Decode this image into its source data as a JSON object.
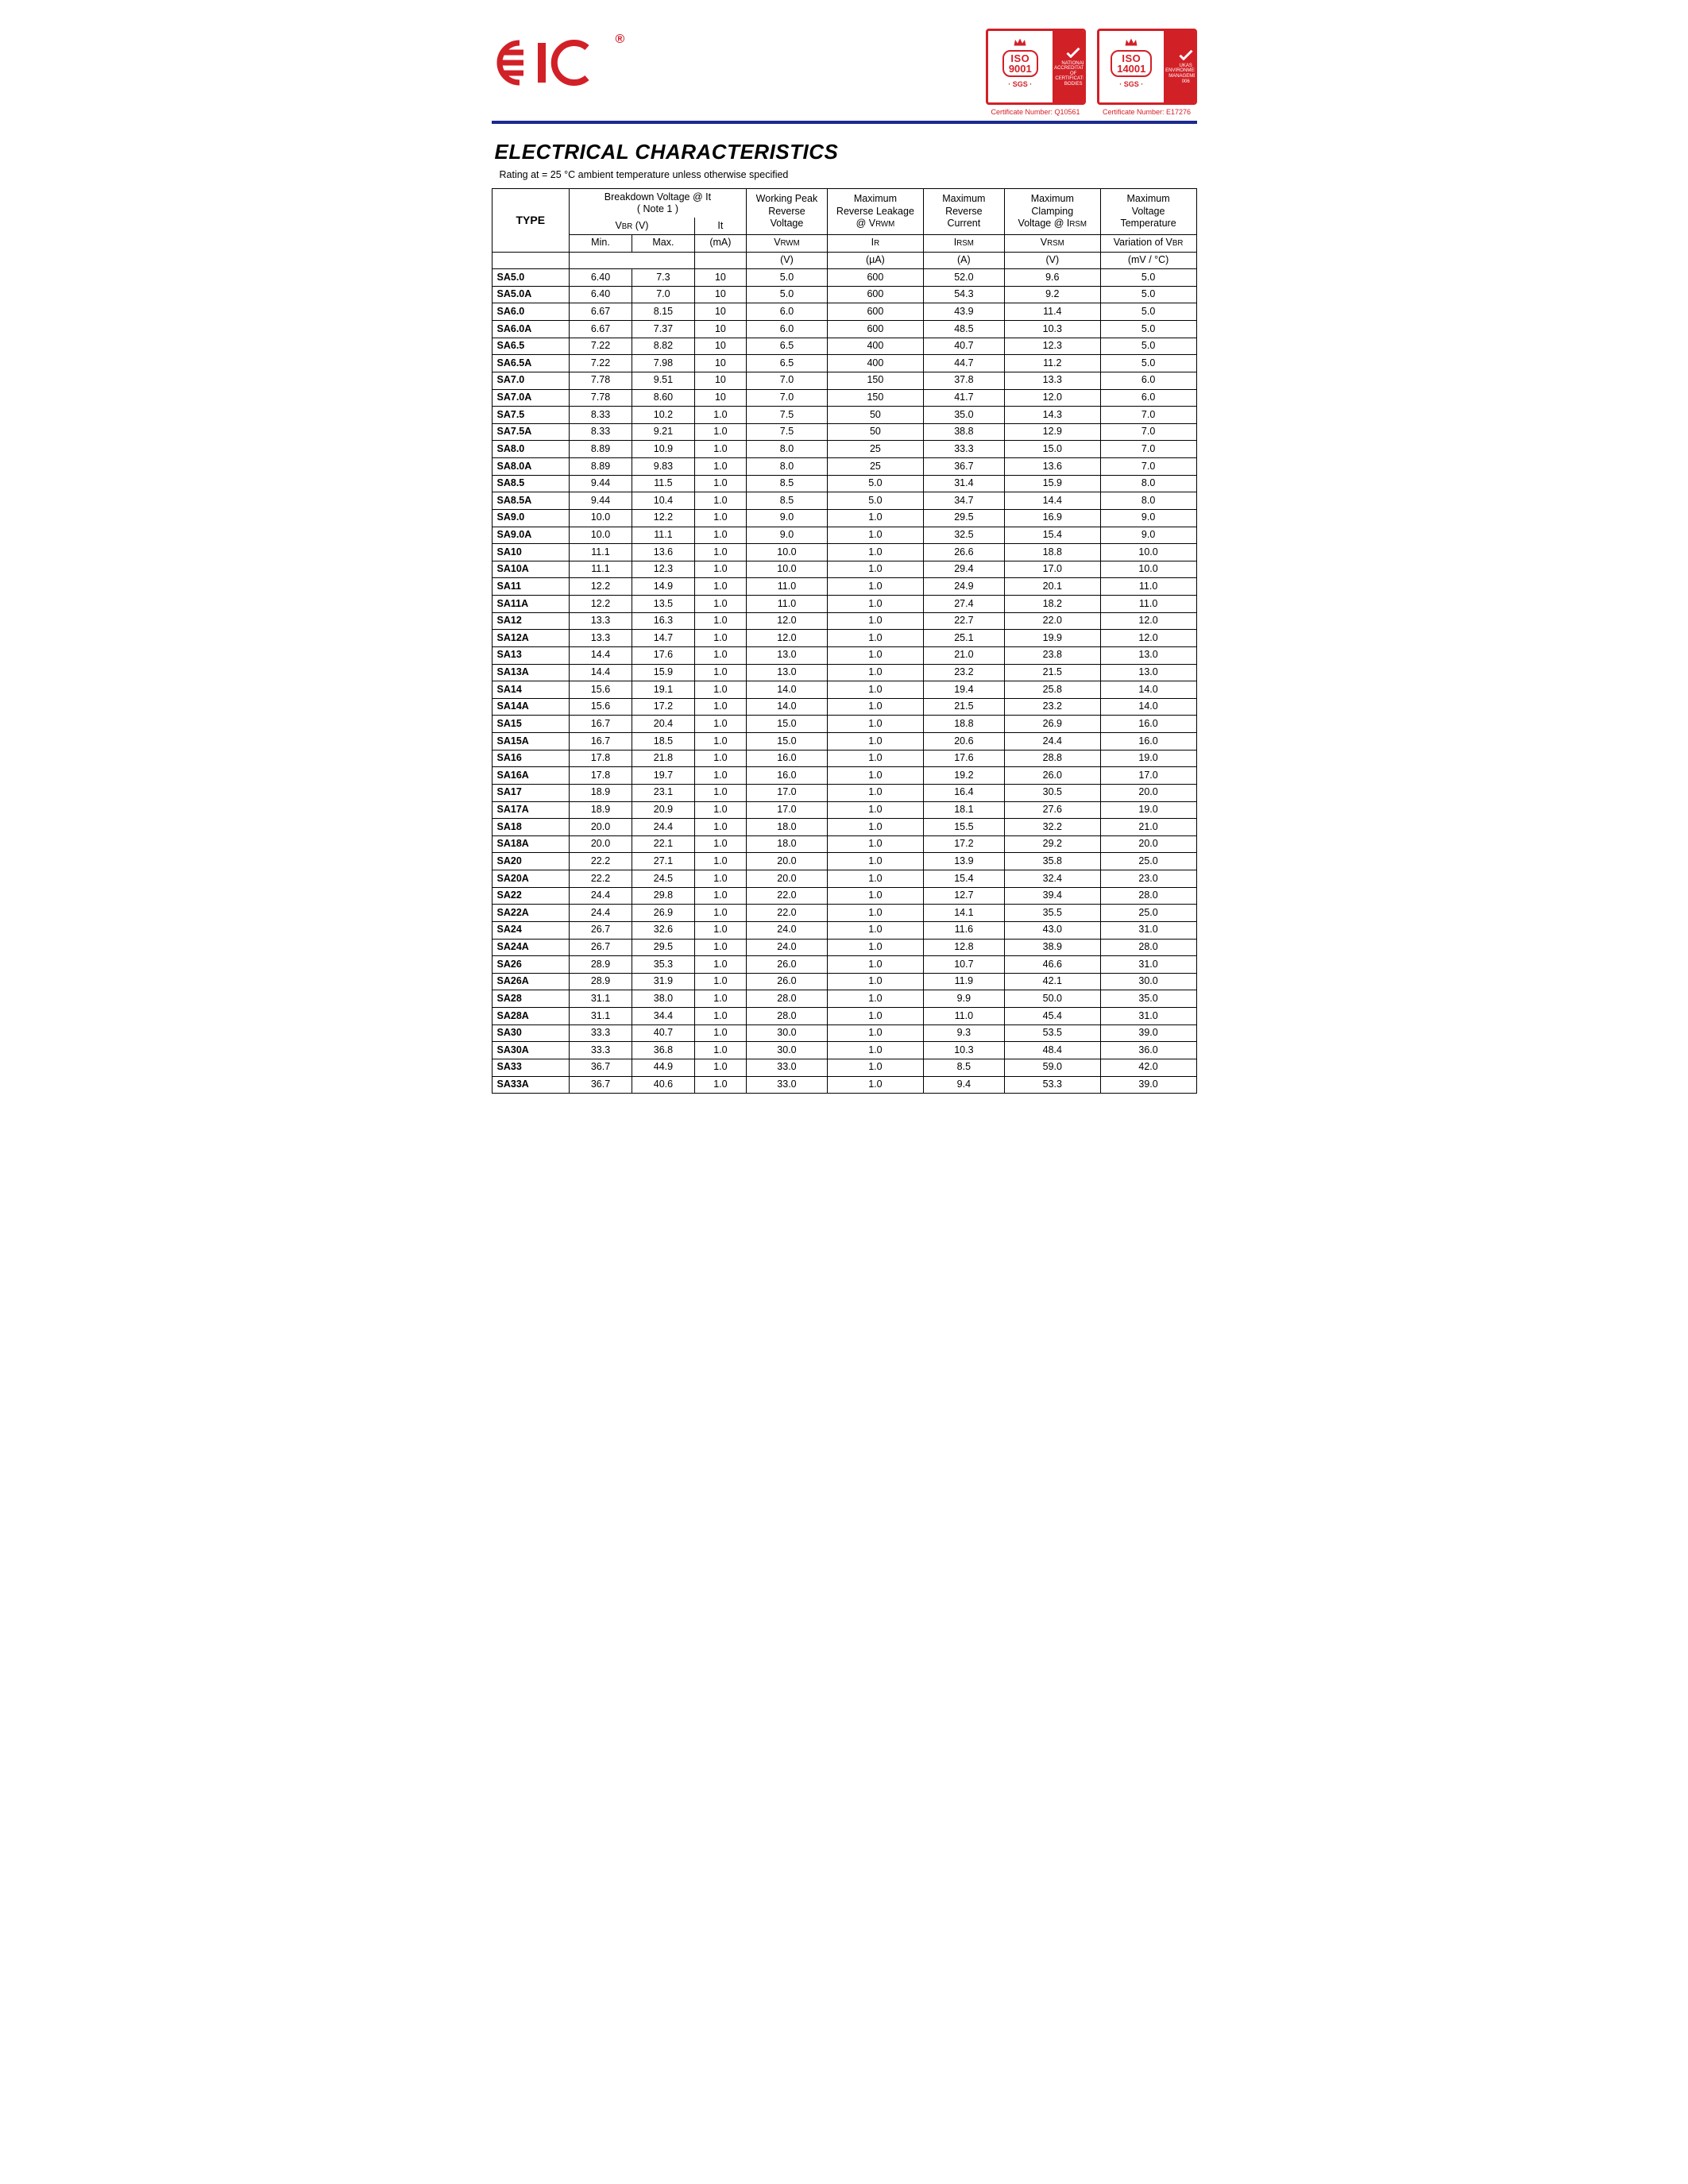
{
  "logo_text": "EIC",
  "registered": "®",
  "certs": [
    {
      "iso_top": "ISO",
      "iso_num": "9001",
      "sgs": "· SGS ·",
      "right_text": "NATIONAL\nACCREDITATION\nOF CERTIFICATION\nBODIES",
      "caption": "Certificate Number: Q10561"
    },
    {
      "iso_top": "ISO",
      "iso_num": "14001",
      "sgs": "· SGS ·",
      "right_text": "UKAS\nENVIRONMENTAL\nMANAGEMENT\n006",
      "caption": "Certificate Number: E17276"
    }
  ],
  "title": "ELECTRICAL CHARACTERISTICS",
  "subtitle": "Rating at  = 25 °C ambient temperature unless otherwise specified",
  "cols": {
    "type": "TYPE",
    "bv_group": "Breakdown Voltage @  It",
    "bv_note": "( Note 1 )",
    "bv_sym": "V",
    "bv_sub": "BR",
    "bv_unit": " (V)",
    "it_sym": "It",
    "min": "Min.",
    "max": "Max.",
    "it_unit": "(mA)",
    "vrwm_top": "Working Peak",
    "vrwm_mid": "Reverse",
    "vrwm_bot": "Voltage",
    "vrwm_sym": "V",
    "vrwm_sub": "RWM",
    "v_unit": "(V)",
    "ir_top": "Maximum",
    "ir_mid": "Reverse Leakage",
    "ir_bot": "@ V",
    "ir_bot_sub": "RWM",
    "ir_sym": "I",
    "ir_sub": "R",
    "ir_unit": "(µA)",
    "irsm_top": "Maximum",
    "irsm_mid": "Reverse",
    "irsm_bot": "Current",
    "irsm_sym": "I",
    "irsm_sub": "RSM",
    "a_unit": "(A)",
    "vrsm_top": "Maximum",
    "vrsm_mid": "Clamping",
    "vrsm_bot": "Voltage @ I",
    "vrsm_bot_sub": "RSM",
    "vrsm_sym": "V",
    "vrsm_sub": "RSM",
    "var_top": "Maximum",
    "var_mid": "Voltage",
    "var_bot": "Temperature",
    "var_sym": "Variation of V",
    "var_sub": "BR",
    "var_unit": "(mV / °C)"
  },
  "rows": [
    [
      "SA5.0",
      "6.40",
      "7.3",
      "10",
      "5.0",
      "600",
      "52.0",
      "9.6",
      "5.0"
    ],
    [
      "SA5.0A",
      "6.40",
      "7.0",
      "10",
      "5.0",
      "600",
      "54.3",
      "9.2",
      "5.0"
    ],
    [
      "SA6.0",
      "6.67",
      "8.15",
      "10",
      "6.0",
      "600",
      "43.9",
      "11.4",
      "5.0"
    ],
    [
      "SA6.0A",
      "6.67",
      "7.37",
      "10",
      "6.0",
      "600",
      "48.5",
      "10.3",
      "5.0"
    ],
    [
      "SA6.5",
      "7.22",
      "8.82",
      "10",
      "6.5",
      "400",
      "40.7",
      "12.3",
      "5.0"
    ],
    [
      "SA6.5A",
      "7.22",
      "7.98",
      "10",
      "6.5",
      "400",
      "44.7",
      "11.2",
      "5.0"
    ],
    [
      "SA7.0",
      "7.78",
      "9.51",
      "10",
      "7.0",
      "150",
      "37.8",
      "13.3",
      "6.0"
    ],
    [
      "SA7.0A",
      "7.78",
      "8.60",
      "10",
      "7.0",
      "150",
      "41.7",
      "12.0",
      "6.0"
    ],
    [
      "SA7.5",
      "8.33",
      "10.2",
      "1.0",
      "7.5",
      "50",
      "35.0",
      "14.3",
      "7.0"
    ],
    [
      "SA7.5A",
      "8.33",
      "9.21",
      "1.0",
      "7.5",
      "50",
      "38.8",
      "12.9",
      "7.0"
    ],
    [
      "SA8.0",
      "8.89",
      "10.9",
      "1.0",
      "8.0",
      "25",
      "33.3",
      "15.0",
      "7.0"
    ],
    [
      "SA8.0A",
      "8.89",
      "9.83",
      "1.0",
      "8.0",
      "25",
      "36.7",
      "13.6",
      "7.0"
    ],
    [
      "SA8.5",
      "9.44",
      "11.5",
      "1.0",
      "8.5",
      "5.0",
      "31.4",
      "15.9",
      "8.0"
    ],
    [
      "SA8.5A",
      "9.44",
      "10.4",
      "1.0",
      "8.5",
      "5.0",
      "34.7",
      "14.4",
      "8.0"
    ],
    [
      "SA9.0",
      "10.0",
      "12.2",
      "1.0",
      "9.0",
      "1.0",
      "29.5",
      "16.9",
      "9.0"
    ],
    [
      "SA9.0A",
      "10.0",
      "11.1",
      "1.0",
      "9.0",
      "1.0",
      "32.5",
      "15.4",
      "9.0"
    ],
    [
      "SA10",
      "11.1",
      "13.6",
      "1.0",
      "10.0",
      "1.0",
      "26.6",
      "18.8",
      "10.0"
    ],
    [
      "SA10A",
      "11.1",
      "12.3",
      "1.0",
      "10.0",
      "1.0",
      "29.4",
      "17.0",
      "10.0"
    ],
    [
      "SA11",
      "12.2",
      "14.9",
      "1.0",
      "11.0",
      "1.0",
      "24.9",
      "20.1",
      "11.0"
    ],
    [
      "SA11A",
      "12.2",
      "13.5",
      "1.0",
      "11.0",
      "1.0",
      "27.4",
      "18.2",
      "11.0"
    ],
    [
      "SA12",
      "13.3",
      "16.3",
      "1.0",
      "12.0",
      "1.0",
      "22.7",
      "22.0",
      "12.0"
    ],
    [
      "SA12A",
      "13.3",
      "14.7",
      "1.0",
      "12.0",
      "1.0",
      "25.1",
      "19.9",
      "12.0"
    ],
    [
      "SA13",
      "14.4",
      "17.6",
      "1.0",
      "13.0",
      "1.0",
      "21.0",
      "23.8",
      "13.0"
    ],
    [
      "SA13A",
      "14.4",
      "15.9",
      "1.0",
      "13.0",
      "1.0",
      "23.2",
      "21.5",
      "13.0"
    ],
    [
      "SA14",
      "15.6",
      "19.1",
      "1.0",
      "14.0",
      "1.0",
      "19.4",
      "25.8",
      "14.0"
    ],
    [
      "SA14A",
      "15.6",
      "17.2",
      "1.0",
      "14.0",
      "1.0",
      "21.5",
      "23.2",
      "14.0"
    ],
    [
      "SA15",
      "16.7",
      "20.4",
      "1.0",
      "15.0",
      "1.0",
      "18.8",
      "26.9",
      "16.0"
    ],
    [
      "SA15A",
      "16.7",
      "18.5",
      "1.0",
      "15.0",
      "1.0",
      "20.6",
      "24.4",
      "16.0"
    ],
    [
      "SA16",
      "17.8",
      "21.8",
      "1.0",
      "16.0",
      "1.0",
      "17.6",
      "28.8",
      "19.0"
    ],
    [
      "SA16A",
      "17.8",
      "19.7",
      "1.0",
      "16.0",
      "1.0",
      "19.2",
      "26.0",
      "17.0"
    ],
    [
      "SA17",
      "18.9",
      "23.1",
      "1.0",
      "17.0",
      "1.0",
      "16.4",
      "30.5",
      "20.0"
    ],
    [
      "SA17A",
      "18.9",
      "20.9",
      "1.0",
      "17.0",
      "1.0",
      "18.1",
      "27.6",
      "19.0"
    ],
    [
      "SA18",
      "20.0",
      "24.4",
      "1.0",
      "18.0",
      "1.0",
      "15.5",
      "32.2",
      "21.0"
    ],
    [
      "SA18A",
      "20.0",
      "22.1",
      "1.0",
      "18.0",
      "1.0",
      "17.2",
      "29.2",
      "20.0"
    ],
    [
      "SA20",
      "22.2",
      "27.1",
      "1.0",
      "20.0",
      "1.0",
      "13.9",
      "35.8",
      "25.0"
    ],
    [
      "SA20A",
      "22.2",
      "24.5",
      "1.0",
      "20.0",
      "1.0",
      "15.4",
      "32.4",
      "23.0"
    ],
    [
      "SA22",
      "24.4",
      "29.8",
      "1.0",
      "22.0",
      "1.0",
      "12.7",
      "39.4",
      "28.0"
    ],
    [
      "SA22A",
      "24.4",
      "26.9",
      "1.0",
      "22.0",
      "1.0",
      "14.1",
      "35.5",
      "25.0"
    ],
    [
      "SA24",
      "26.7",
      "32.6",
      "1.0",
      "24.0",
      "1.0",
      "11.6",
      "43.0",
      "31.0"
    ],
    [
      "SA24A",
      "26.7",
      "29.5",
      "1.0",
      "24.0",
      "1.0",
      "12.8",
      "38.9",
      "28.0"
    ],
    [
      "SA26",
      "28.9",
      "35.3",
      "1.0",
      "26.0",
      "1.0",
      "10.7",
      "46.6",
      "31.0"
    ],
    [
      "SA26A",
      "28.9",
      "31.9",
      "1.0",
      "26.0",
      "1.0",
      "11.9",
      "42.1",
      "30.0"
    ],
    [
      "SA28",
      "31.1",
      "38.0",
      "1.0",
      "28.0",
      "1.0",
      "9.9",
      "50.0",
      "35.0"
    ],
    [
      "SA28A",
      "31.1",
      "34.4",
      "1.0",
      "28.0",
      "1.0",
      "11.0",
      "45.4",
      "31.0"
    ],
    [
      "SA30",
      "33.3",
      "40.7",
      "1.0",
      "30.0",
      "1.0",
      "9.3",
      "53.5",
      "39.0"
    ],
    [
      "SA30A",
      "33.3",
      "36.8",
      "1.0",
      "30.0",
      "1.0",
      "10.3",
      "48.4",
      "36.0"
    ],
    [
      "SA33",
      "36.7",
      "44.9",
      "1.0",
      "33.0",
      "1.0",
      "8.5",
      "59.0",
      "42.0"
    ],
    [
      "SA33A",
      "36.7",
      "40.6",
      "1.0",
      "33.0",
      "1.0",
      "9.4",
      "53.3",
      "39.0"
    ]
  ]
}
